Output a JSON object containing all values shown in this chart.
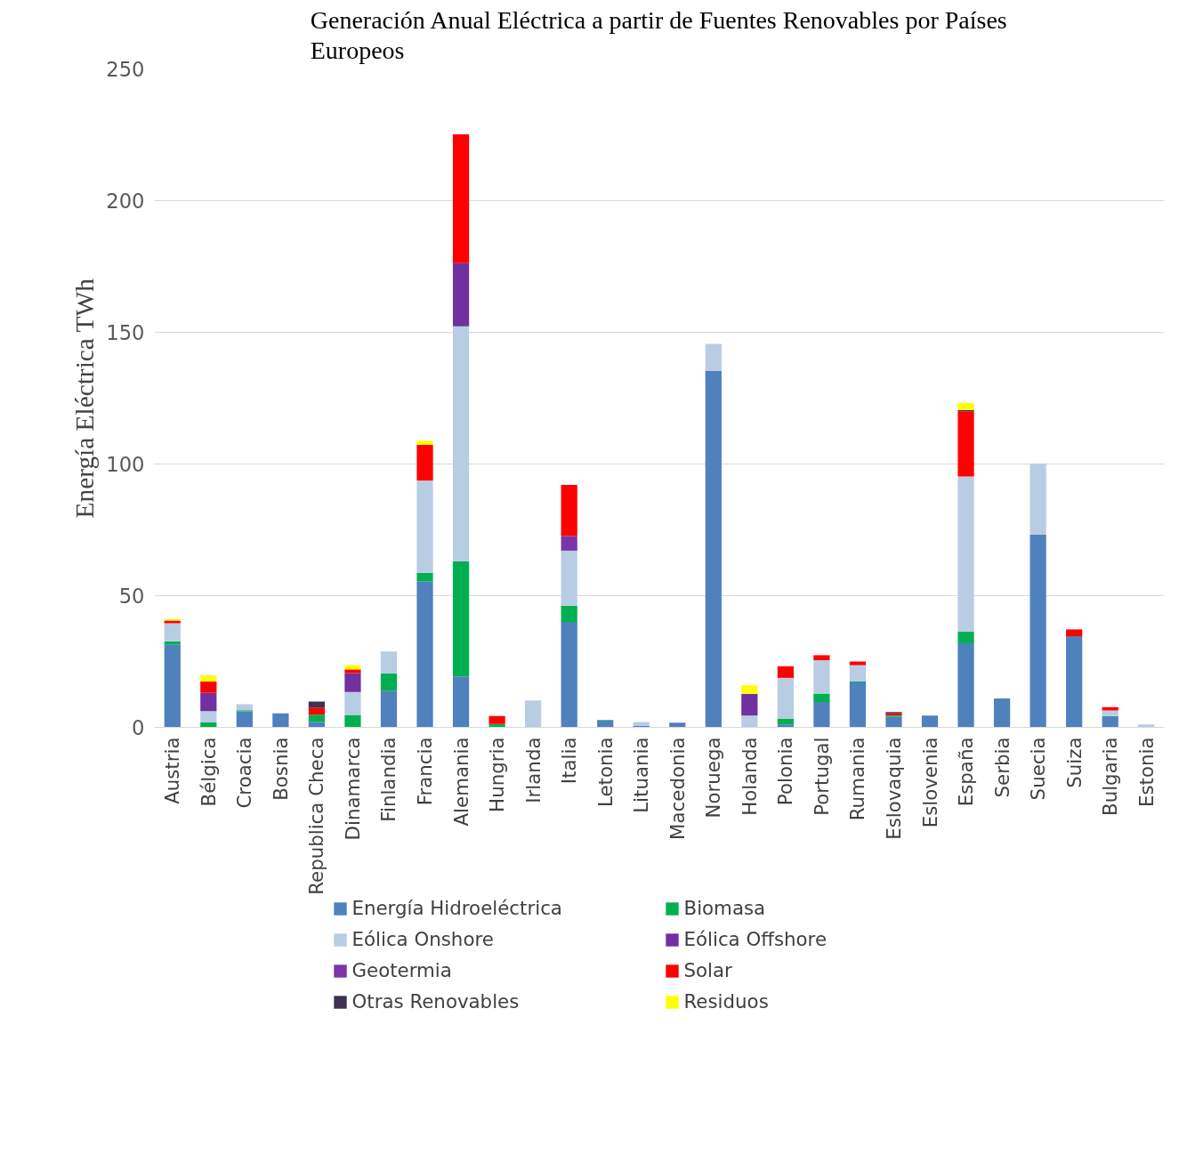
{
  "chart_data": {
    "type": "bar",
    "stacked": true,
    "title": "Generación Anual Eléctrica a partir de Fuentes Renovables por Países Europeos",
    "ylabel": "Energía Eléctrica TWh",
    "categories": [
      "Austria",
      "Bélgica",
      "Croacia",
      "Bosnia",
      "Republica Checa",
      "Dinamarca",
      "Finlandia",
      "Francia",
      "Alemania",
      "Hungria",
      "Irlanda",
      "Italia",
      "Letonia",
      "Lituania",
      "Macedonia",
      "Noruega",
      "Holanda",
      "Polonia",
      "Portugal",
      "Rumania",
      "Eslovaquia",
      "Eslovenia",
      "España",
      "Serbia",
      "Suecia",
      "Suiza",
      "Bulgaria",
      "Estonia"
    ],
    "series": [
      {
        "name": "Energía Hidroeléctrica",
        "color": "#4f81bd",
        "values": [
          31.5,
          null,
          6.1,
          5.3,
          2.1,
          0,
          13.9,
          55.5,
          19.3,
          0,
          0,
          40.0,
          2.5,
          0.5,
          1.8,
          135.3,
          0,
          1.1,
          9.6,
          17.1,
          4.0,
          4.5,
          31.9,
          11.0,
          73.1,
          34.6,
          4.3,
          0
        ]
      },
      {
        "name": "Biomasa",
        "color": "#00b050",
        "values": [
          1.2,
          1.9,
          0.4,
          0,
          2.7,
          4.7,
          6.6,
          3.2,
          43.7,
          1.3,
          0,
          6.2,
          0.3,
          0,
          0,
          0,
          0,
          2.1,
          3.2,
          0.3,
          0.5,
          0,
          4.4,
          0,
          0,
          0,
          0,
          0
        ]
      },
      {
        "name": "Eólica Onshore",
        "color": "#b8cce4",
        "values": [
          6.8,
          4.3,
          2.3,
          0,
          0,
          8.7,
          8.3,
          35.0,
          89.3,
          0,
          10.2,
          20.9,
          0,
          1.5,
          0,
          10.3,
          4.5,
          15.6,
          12.7,
          6.2,
          0,
          0,
          59.0,
          0,
          27.0,
          0,
          2.1,
          1.1
        ]
      },
      {
        "name": "Eólica Offshore",
        "color": "#7030a0",
        "values": [
          0,
          6.9,
          0,
          0,
          0,
          7.2,
          0,
          0,
          24.0,
          0,
          0,
          0,
          0,
          0,
          0,
          0,
          8.2,
          0,
          0,
          0,
          0,
          0,
          0,
          0,
          0,
          0,
          0,
          0
        ]
      },
      {
        "name": "Geotermia",
        "color": "#7a35a8",
        "values": [
          0,
          0,
          0,
          0,
          0,
          0,
          0,
          0,
          0,
          0,
          0,
          5.6,
          0,
          0,
          0,
          0,
          0,
          0,
          0,
          0,
          0,
          0,
          0,
          0,
          0,
          0,
          0,
          0
        ]
      },
      {
        "name": "Solar",
        "color": "#ff0000",
        "values": [
          1.0,
          4.3,
          0,
          0,
          2.7,
          1.4,
          0,
          13.6,
          48.9,
          3.0,
          0,
          19.4,
          0,
          0,
          0,
          0,
          0,
          4.4,
          1.9,
          1.4,
          0.8,
          0,
          24.7,
          0,
          0,
          2.6,
          1.3,
          0
        ]
      },
      {
        "name": "Otras Renovables",
        "color": "#3f3151",
        "values": [
          0,
          0,
          0,
          0,
          2.3,
          0,
          0,
          0,
          0,
          0,
          0,
          0,
          0,
          0,
          0,
          0,
          0,
          0,
          0,
          0,
          0.5,
          0,
          0.5,
          0,
          0,
          0,
          0,
          0
        ]
      },
      {
        "name": "Residuos",
        "color": "#ffff00",
        "values": [
          0.6,
          2.3,
          0,
          0,
          0,
          1.6,
          0,
          1.6,
          0,
          0,
          0,
          0,
          0,
          0,
          0,
          0,
          3.3,
          0,
          0,
          0,
          0,
          0,
          2.7,
          0,
          0,
          0,
          0,
          0
        ]
      }
    ],
    "ylim": [
      0,
      250
    ],
    "yticks": [
      0,
      50,
      100,
      150,
      200,
      250
    ],
    "grid": "y",
    "legend": "bottom"
  }
}
